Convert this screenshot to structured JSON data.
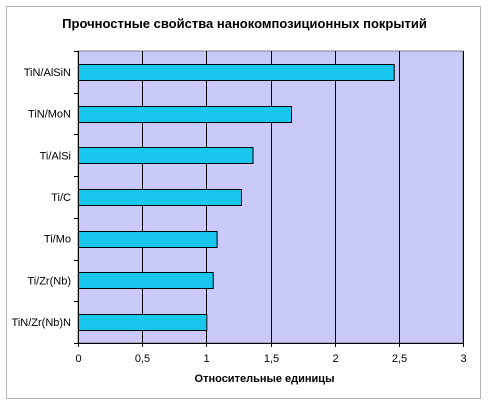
{
  "chart_data": {
    "type": "bar",
    "orientation": "horizontal",
    "title": "Прочностные свойства нанокомпозиционных покрытий",
    "xlabel": "Относительные единицы",
    "ylabel": "",
    "categories": [
      "TiN/Zr(Nb)N",
      "Ti/Zr(Nb)",
      "Ti/Mo",
      "Ti/C",
      "Ti/AlSi",
      "TiN/MoN",
      "TiN/AlSiN"
    ],
    "values": [
      1.0,
      1.05,
      1.08,
      1.27,
      1.36,
      1.66,
      2.46
    ],
    "xlim": [
      0,
      3
    ],
    "x_ticks": [
      0,
      0.5,
      1,
      1.5,
      2,
      2.5,
      3
    ],
    "x_tick_labels": [
      "0",
      "0,5",
      "1",
      "1,5",
      "2",
      "2,5",
      "3"
    ],
    "grid": true,
    "legend": "none",
    "colors": {
      "bar_fill": "#19c6ee",
      "bar_stroke": "#000000",
      "plot_background": "#c9c9fa",
      "grid": "#000000"
    }
  }
}
